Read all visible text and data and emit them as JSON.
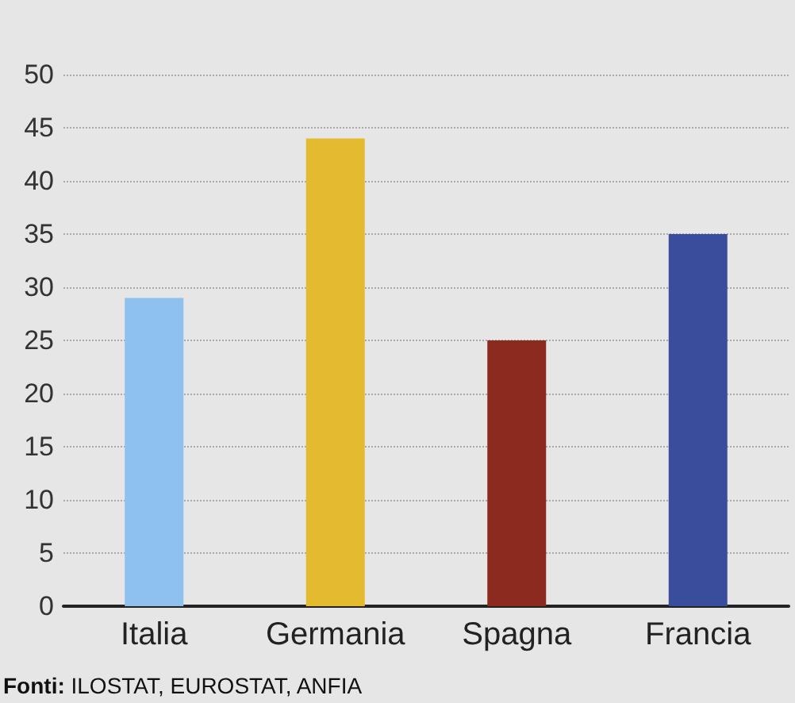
{
  "chart_data": {
    "type": "bar",
    "categories": [
      "Italia",
      "Germania",
      "Spagna",
      "Francia"
    ],
    "values": [
      29,
      44,
      25,
      35
    ],
    "colors": [
      "#8fc1ee",
      "#e4bb2f",
      "#8b2a1e",
      "#3a4c9c"
    ],
    "ylim": [
      0,
      50
    ],
    "yticks": [
      0,
      5,
      10,
      15,
      20,
      25,
      30,
      35,
      40,
      45,
      50
    ],
    "grid": "y",
    "line_style": "dotted",
    "annotations": [
      "Fonti: ILOSTAT, EUROSTAT, ANFIA"
    ]
  }
}
